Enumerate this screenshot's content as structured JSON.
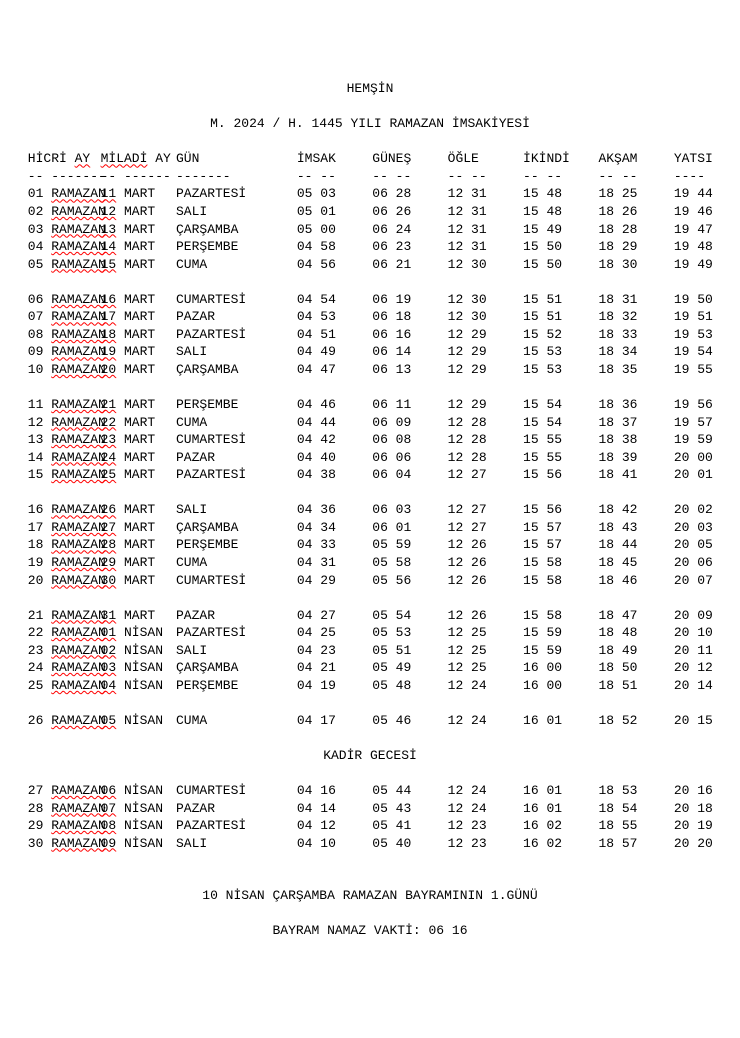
{
  "location": "HEMŞİN",
  "year_line": "M. 2024 / H. 1445 YILI RAMAZAN İMSAKİYESİ",
  "header": {
    "hicri": "HİCRİ",
    "ay1": "AY",
    "miladi": "MİLADİ",
    "ay2": "AY",
    "gun": "GÜN",
    "imsak": "İMSAK",
    "gunes": "GÜNEŞ",
    "ogle": "ÖĞLE",
    "ikindi": "İKİNDİ",
    "aksam": "AKŞAM",
    "yatsi": "YATSI"
  },
  "dashes": {
    "c1": "-- -------",
    "c2": "-- ------",
    "c3": "-------",
    "tc": "-- --",
    "tc_last": "----"
  },
  "sections": [
    {
      "rows": [
        {
          "hn": "01",
          "hm": "RAMAZAN",
          "mn": "11",
          "mm": "MART",
          "g": "PAZARTESİ",
          "i": "05 03",
          "gu": "06 28",
          "o": "12 31",
          "ik": "15 48",
          "a": "18 25",
          "y": "19 44"
        },
        {
          "hn": "02",
          "hm": "RAMAZAN",
          "mn": "12",
          "mm": "MART",
          "g": "SALI",
          "i": "05 01",
          "gu": "06 26",
          "o": "12 31",
          "ik": "15 48",
          "a": "18 26",
          "y": "19 46"
        },
        {
          "hn": "03",
          "hm": "RAMAZAN",
          "mn": "13",
          "mm": "MART",
          "g": "ÇARŞAMBA",
          "i": "05 00",
          "gu": "06 24",
          "o": "12 31",
          "ik": "15 49",
          "a": "18 28",
          "y": "19 47"
        },
        {
          "hn": "04",
          "hm": "RAMAZAN",
          "mn": "14",
          "mm": "MART",
          "g": "PERŞEMBE",
          "i": "04 58",
          "gu": "06 23",
          "o": "12 31",
          "ik": "15 50",
          "a": "18 29",
          "y": "19 48"
        },
        {
          "hn": "05",
          "hm": "RAMAZAN",
          "mn": "15",
          "mm": "MART",
          "g": "CUMA",
          "i": "04 56",
          "gu": "06 21",
          "o": "12 30",
          "ik": "15 50",
          "a": "18 30",
          "y": "19 49"
        }
      ]
    },
    {
      "rows": [
        {
          "hn": "06",
          "hm": "RAMAZAN",
          "mn": "16",
          "mm": "MART",
          "g": "CUMARTESİ",
          "i": "04 54",
          "gu": "06 19",
          "o": "12 30",
          "ik": "15 51",
          "a": "18 31",
          "y": "19 50"
        },
        {
          "hn": "07",
          "hm": "RAMAZAN",
          "mn": "17",
          "mm": "MART",
          "g": "PAZAR",
          "i": "04 53",
          "gu": "06 18",
          "o": "12 30",
          "ik": "15 51",
          "a": "18 32",
          "y": "19 51"
        },
        {
          "hn": "08",
          "hm": "RAMAZAN",
          "mn": "18",
          "mm": "MART",
          "g": "PAZARTESİ",
          "i": "04 51",
          "gu": "06 16",
          "o": "12 29",
          "ik": "15 52",
          "a": "18 33",
          "y": "19 53"
        },
        {
          "hn": "09",
          "hm": "RAMAZAN",
          "mn": "19",
          "mm": "MART",
          "g": "SALI",
          "i": "04 49",
          "gu": "06 14",
          "o": "12 29",
          "ik": "15 53",
          "a": "18 34",
          "y": "19 54"
        },
        {
          "hn": "10",
          "hm": "RAMAZAN",
          "mn": "20",
          "mm": "MART",
          "g": "ÇARŞAMBA",
          "i": "04 47",
          "gu": "06 13",
          "o": "12 29",
          "ik": "15 53",
          "a": "18 35",
          "y": "19 55"
        }
      ]
    },
    {
      "rows": [
        {
          "hn": "11",
          "hm": "RAMAZAN",
          "mn": "21",
          "mm": "MART",
          "g": "PERŞEMBE",
          "i": "04 46",
          "gu": "06 11",
          "o": "12 29",
          "ik": "15 54",
          "a": "18 36",
          "y": "19 56"
        },
        {
          "hn": "12",
          "hm": "RAMAZAN",
          "mn": "22",
          "mm": "MART",
          "g": "CUMA",
          "i": "04 44",
          "gu": "06 09",
          "o": "12 28",
          "ik": "15 54",
          "a": "18 37",
          "y": "19 57"
        },
        {
          "hn": "13",
          "hm": "RAMAZAN",
          "mn": "23",
          "mm": "MART",
          "g": "CUMARTESİ",
          "i": "04 42",
          "gu": "06 08",
          "o": "12 28",
          "ik": "15 55",
          "a": "18 38",
          "y": "19 59"
        },
        {
          "hn": "14",
          "hm": "RAMAZAN",
          "mn": "24",
          "mm": "MART",
          "g": "PAZAR",
          "i": "04 40",
          "gu": "06 06",
          "o": "12 28",
          "ik": "15 55",
          "a": "18 39",
          "y": "20 00"
        },
        {
          "hn": "15",
          "hm": "RAMAZAN",
          "mn": "25",
          "mm": "MART",
          "g": "PAZARTESİ",
          "i": "04 38",
          "gu": "06 04",
          "o": "12 27",
          "ik": "15 56",
          "a": "18 41",
          "y": "20 01"
        }
      ]
    },
    {
      "rows": [
        {
          "hn": "16",
          "hm": "RAMAZAN",
          "mn": "26",
          "mm": "MART",
          "g": "SALI",
          "i": "04 36",
          "gu": "06 03",
          "o": "12 27",
          "ik": "15 56",
          "a": "18 42",
          "y": "20 02"
        },
        {
          "hn": "17",
          "hm": "RAMAZAN",
          "mn": "27",
          "mm": "MART",
          "g": "ÇARŞAMBA",
          "i": "04 34",
          "gu": "06 01",
          "o": "12 27",
          "ik": "15 57",
          "a": "18 43",
          "y": "20 03"
        },
        {
          "hn": "18",
          "hm": "RAMAZAN",
          "mn": "28",
          "mm": "MART",
          "g": "PERŞEMBE",
          "i": "04 33",
          "gu": "05 59",
          "o": "12 26",
          "ik": "15 57",
          "a": "18 44",
          "y": "20 05"
        },
        {
          "hn": "19",
          "hm": "RAMAZAN",
          "mn": "29",
          "mm": "MART",
          "g": "CUMA",
          "i": "04 31",
          "gu": "05 58",
          "o": "12 26",
          "ik": "15 58",
          "a": "18 45",
          "y": "20 06"
        },
        {
          "hn": "20",
          "hm": "RAMAZAN",
          "mn": "30",
          "mm": "MART",
          "g": "CUMARTESİ",
          "i": "04 29",
          "gu": "05 56",
          "o": "12 26",
          "ik": "15 58",
          "a": "18 46",
          "y": "20 07"
        }
      ]
    },
    {
      "rows": [
        {
          "hn": "21",
          "hm": "RAMAZAN",
          "mn": "31",
          "mm": "MART",
          "g": "PAZAR",
          "i": "04 27",
          "gu": "05 54",
          "o": "12 26",
          "ik": "15 58",
          "a": "18 47",
          "y": "20 09"
        },
        {
          "hn": "22",
          "hm": "RAMAZAN",
          "mn": "01",
          "mm": "NİSAN",
          "g": "PAZARTESİ",
          "i": "04 25",
          "gu": "05 53",
          "o": "12 25",
          "ik": "15 59",
          "a": "18 48",
          "y": "20 10"
        },
        {
          "hn": "23",
          "hm": "RAMAZAN",
          "mn": "02",
          "mm": "NİSAN",
          "g": "SALI",
          "i": "04 23",
          "gu": "05 51",
          "o": "12 25",
          "ik": "15 59",
          "a": "18 49",
          "y": "20 11"
        },
        {
          "hn": "24",
          "hm": "RAMAZAN",
          "mn": "03",
          "mm": "NİSAN",
          "g": "ÇARŞAMBA",
          "i": "04 21",
          "gu": "05 49",
          "o": "12 25",
          "ik": "16 00",
          "a": "18 50",
          "y": "20 12"
        },
        {
          "hn": "25",
          "hm": "RAMAZAN",
          "mn": "04",
          "mm": "NİSAN",
          "g": "PERŞEMBE",
          "i": "04 19",
          "gu": "05 48",
          "o": "12 24",
          "ik": "16 00",
          "a": "18 51",
          "y": "20 14"
        }
      ]
    },
    {
      "rows": [
        {
          "hn": "26",
          "hm": "RAMAZAN",
          "mn": "05",
          "mm": "NİSAN",
          "g": "CUMA",
          "i": "04 17",
          "gu": "05 46",
          "o": "12 24",
          "ik": "16 01",
          "a": "18 52",
          "y": "20 15"
        }
      ]
    }
  ],
  "kadir_label": "KADİR GECESİ",
  "kadir_rows": [
    {
      "hn": "27",
      "hm": "RAMAZAN",
      "mn": "06",
      "mm": "NİSAN",
      "g": "CUMARTESİ",
      "i": "04 16",
      "gu": "05 44",
      "o": "12 24",
      "ik": "16 01",
      "a": "18 53",
      "y": "20 16"
    },
    {
      "hn": "28",
      "hm": "RAMAZAN",
      "mn": "07",
      "mm": "NİSAN",
      "g": "PAZAR",
      "i": "04 14",
      "gu": "05 43",
      "o": "12 24",
      "ik": "16 01",
      "a": "18 54",
      "y": "20 18"
    },
    {
      "hn": "29",
      "hm": "RAMAZAN",
      "mn": "08",
      "mm": "NİSAN",
      "g": "PAZARTESİ",
      "i": "04 12",
      "gu": "05 41",
      "o": "12 23",
      "ik": "16 02",
      "a": "18 55",
      "y": "20 19"
    },
    {
      "hn": "30",
      "hm": "RAMAZAN",
      "mn": "09",
      "mm": "NİSAN",
      "g": "SALI",
      "i": "04 10",
      "gu": "05 40",
      "o": "12 23",
      "ik": "16 02",
      "a": "18 57",
      "y": "20 20"
    }
  ],
  "bayram_line": "10 NİSAN ÇARŞAMBA RAMAZAN BAYRAMININ 1.GÜNÜ",
  "bayram_namaz": "BAYRAM NAMAZ VAKTİ: 06 16"
}
